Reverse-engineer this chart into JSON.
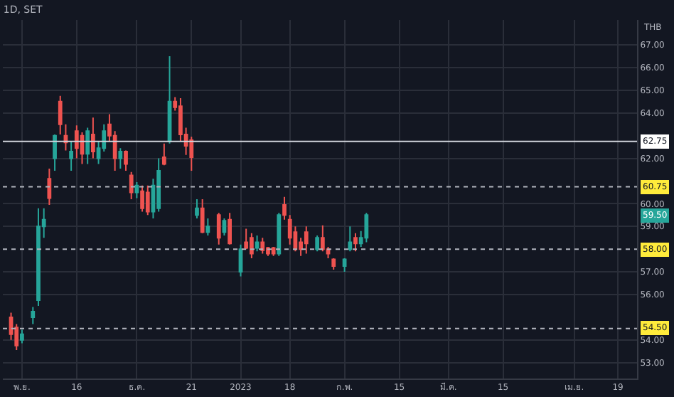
{
  "chart_data": {
    "type": "candlestick",
    "title": "1D, SET",
    "annotations": [
      "THB",
      {
        "text": "59.50",
        "y": 59.5
      }
    ],
    "categories": [
      null,
      null,
      null,
      "พ.ย.",
      null,
      null,
      null,
      null,
      null,
      null,
      null,
      null,
      null,
      "16",
      null,
      null,
      null,
      null,
      null,
      null,
      null,
      null,
      null,
      null,
      "ธ.ค.",
      null,
      null,
      null,
      null,
      null,
      null,
      null,
      null,
      null,
      "21",
      null,
      null,
      null,
      null,
      null,
      null,
      null,
      null,
      "2023",
      null,
      null,
      null,
      null,
      null,
      null,
      null,
      null,
      "18",
      null,
      null,
      null,
      null,
      null,
      null,
      null,
      null,
      null,
      "ก.พ.",
      null,
      null,
      null,
      null,
      null,
      null,
      null,
      null,
      null,
      "15",
      null,
      null,
      null,
      null,
      null,
      null,
      null,
      null,
      "มี.ค.",
      null,
      null,
      null,
      null,
      null,
      null,
      null,
      null,
      null,
      "15",
      null,
      null,
      null,
      null,
      null,
      null,
      null,
      null,
      null,
      null,
      null,
      null,
      "เม.ย.",
      null,
      null,
      null,
      null,
      null,
      null,
      null,
      "19",
      null,
      null,
      null
    ],
    "ohlc": [
      null,
      [
        55.0,
        55.2,
        54.0,
        54.25
      ],
      [
        54.55,
        54.7,
        53.55,
        53.75
      ],
      [
        54.0,
        54.45,
        53.85,
        54.25
      ],
      null,
      [
        55.0,
        55.45,
        54.7,
        55.25
      ],
      [
        55.75,
        59.8,
        55.5,
        59.0
      ],
      [
        59.0,
        59.8,
        58.5,
        59.3
      ],
      [
        61.1,
        61.55,
        59.95,
        60.25
      ],
      [
        62.0,
        63.05,
        61.45,
        63.0
      ],
      [
        64.5,
        64.75,
        63.05,
        63.5
      ],
      [
        63.0,
        63.5,
        62.35,
        62.7
      ],
      [
        62.0,
        62.75,
        61.45,
        62.3
      ],
      [
        63.2,
        63.45,
        62.0,
        62.45
      ],
      [
        63.0,
        63.15,
        61.75,
        62.2
      ],
      [
        62.2,
        63.35,
        61.75,
        63.2
      ],
      [
        63.05,
        63.8,
        62.0,
        62.3
      ],
      [
        62.0,
        62.75,
        61.75,
        62.45
      ],
      [
        62.45,
        63.5,
        62.3,
        63.2
      ],
      [
        63.5,
        63.95,
        62.75,
        63.0
      ],
      [
        63.0,
        63.2,
        61.45,
        62.0
      ],
      [
        62.0,
        62.45,
        61.55,
        62.3
      ],
      [
        62.3,
        62.35,
        61.45,
        61.75
      ],
      [
        61.25,
        61.4,
        60.2,
        60.5
      ],
      [
        60.5,
        60.95,
        60.25,
        60.8
      ],
      [
        60.55,
        60.8,
        59.65,
        59.8
      ],
      [
        60.5,
        60.8,
        59.5,
        59.65
      ],
      [
        59.65,
        61.1,
        59.35,
        60.8
      ],
      [
        59.8,
        62.0,
        59.65,
        61.45
      ],
      [
        62.05,
        62.65,
        61.7,
        61.75
      ],
      [
        62.75,
        66.5,
        62.65,
        64.5
      ],
      [
        64.5,
        64.7,
        64.1,
        64.25
      ],
      [
        64.3,
        64.65,
        62.75,
        63.05
      ],
      [
        63.05,
        63.35,
        62.15,
        62.55
      ],
      [
        62.8,
        62.95,
        61.45,
        62.05
      ],
      [
        59.5,
        60.2,
        59.35,
        59.8
      ],
      [
        59.8,
        60.2,
        58.7,
        58.75
      ],
      [
        58.75,
        59.35,
        58.6,
        59.0
      ],
      null,
      [
        59.5,
        59.6,
        58.2,
        58.5
      ],
      [
        58.75,
        59.35,
        58.6,
        59.25
      ],
      [
        59.3,
        59.6,
        58.2,
        58.25
      ],
      null,
      [
        57.0,
        58.2,
        56.8,
        58.0
      ],
      [
        58.3,
        58.9,
        58.0,
        58.05
      ],
      [
        58.5,
        58.7,
        57.6,
        57.8
      ],
      [
        58.05,
        58.6,
        57.9,
        58.3
      ],
      [
        58.3,
        58.5,
        57.8,
        57.95
      ],
      [
        58.05,
        58.1,
        57.7,
        57.8
      ],
      [
        58.05,
        58.1,
        57.7,
        57.8
      ],
      [
        57.8,
        59.6,
        57.7,
        59.5
      ],
      [
        59.95,
        60.3,
        59.3,
        59.5
      ],
      [
        59.3,
        59.5,
        58.2,
        58.5
      ],
      [
        58.75,
        59.0,
        57.9,
        58.0
      ],
      [
        58.3,
        58.5,
        57.7,
        58.0
      ],
      [
        58.75,
        59.0,
        57.8,
        58.25
      ],
      null,
      [
        58.0,
        58.6,
        57.9,
        58.5
      ],
      [
        58.5,
        59.05,
        57.9,
        58.0
      ],
      [
        58.0,
        58.1,
        57.6,
        57.8
      ],
      [
        57.55,
        57.6,
        57.1,
        57.25
      ],
      null,
      [
        57.25,
        57.6,
        57.0,
        57.55
      ],
      [
        58.0,
        59.0,
        57.9,
        58.3
      ],
      [
        58.5,
        58.7,
        57.9,
        58.25
      ],
      [
        58.25,
        58.8,
        58.1,
        58.5
      ],
      [
        58.5,
        59.6,
        58.3,
        59.5
      ],
      null,
      null,
      null,
      null,
      null,
      null,
      null,
      null,
      null,
      null,
      null,
      null,
      null,
      null,
      null,
      null,
      null,
      null,
      null,
      null,
      null,
      null,
      null,
      null,
      null,
      null,
      null,
      null,
      null,
      null,
      null,
      null,
      null,
      null,
      null,
      null,
      null,
      null,
      null,
      null,
      null,
      null,
      null,
      null,
      null,
      null,
      null,
      null,
      null
    ],
    "ylim": [
      52.3,
      68.1
    ],
    "yticks": [
      {
        "value": 53,
        "label": "53.00"
      },
      {
        "value": 54,
        "label": "54.00"
      },
      {
        "value": 56,
        "label": "56.00"
      },
      {
        "value": 57,
        "label": "57.00"
      },
      {
        "value": 59,
        "label": "59.00"
      },
      {
        "value": 60,
        "label": "60.00"
      },
      {
        "value": 62,
        "label": "62.00"
      },
      {
        "value": 64,
        "label": "64.00"
      },
      {
        "value": 65,
        "label": "65.00"
      },
      {
        "value": 66,
        "label": "66.00"
      },
      {
        "value": 67,
        "label": "67.00"
      }
    ],
    "ref_lines": [
      {
        "axis": "y",
        "value": 62.75,
        "label": "62.75",
        "color": "#d1d4dc",
        "line_style": "solid"
      },
      {
        "axis": "y",
        "value": 60.75,
        "label": "60.75",
        "color": "#b2b5be",
        "line_style": "dotted"
      },
      {
        "axis": "y",
        "value": 58.0,
        "label": "58.00",
        "color": "#b2b5be",
        "line_style": "dotted"
      },
      {
        "axis": "y",
        "value": 54.5,
        "label": "54.50",
        "color": "#b2b5be",
        "line_style": "dotted"
      }
    ],
    "grid": true
  }
}
